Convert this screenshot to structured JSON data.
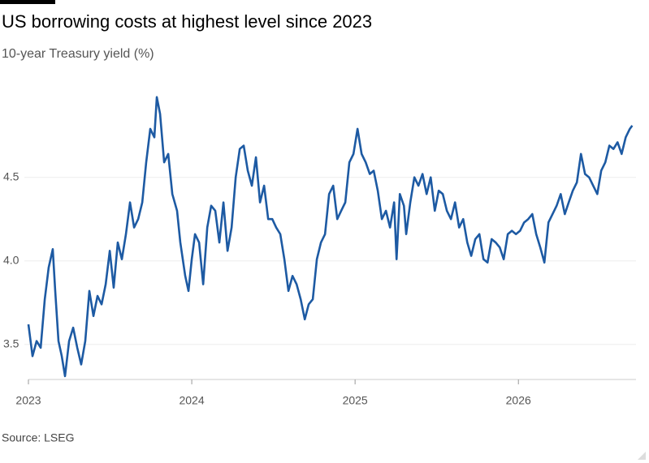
{
  "chart_data": {
    "type": "line",
    "title": "US borrowing costs at highest level since 2023",
    "subtitle": "10-year Treasury yield (%)",
    "source": "Source: LSEG",
    "color": "#1d5aa3",
    "grid": true,
    "xlim": [
      2023,
      2026.72
    ],
    "xticks": [
      2023,
      2024,
      2025,
      2026
    ],
    "ylim": [
      3.29,
      5.0
    ],
    "yticks": [
      3.5,
      {
        "value": 4,
        "label": "4.0"
      },
      4.5
    ],
    "x": [
      2023.0,
      2023.025,
      2023.05,
      2023.075,
      2023.1,
      2023.124,
      2023.149,
      2023.164,
      2023.184,
      2023.204,
      2023.224,
      2023.249,
      2023.274,
      2023.299,
      2023.323,
      2023.348,
      2023.373,
      2023.398,
      2023.423,
      2023.448,
      2023.473,
      2023.498,
      2023.522,
      2023.547,
      2023.572,
      2023.597,
      2023.622,
      2023.647,
      2023.672,
      2023.697,
      2023.721,
      2023.746,
      2023.771,
      2023.786,
      2023.806,
      2023.831,
      2023.856,
      2023.881,
      2023.91,
      2023.93,
      2023.96,
      2023.98,
      2024.0,
      2024.02,
      2024.045,
      2024.07,
      2024.095,
      2024.119,
      2024.144,
      2024.169,
      2024.194,
      2024.219,
      2024.244,
      2024.269,
      2024.294,
      2024.318,
      2024.343,
      2024.368,
      2024.393,
      2024.418,
      2024.443,
      2024.468,
      2024.493,
      2024.517,
      2024.542,
      2024.567,
      2024.592,
      2024.617,
      2024.642,
      2024.667,
      2024.692,
      2024.716,
      2024.741,
      2024.766,
      2024.791,
      2024.816,
      2024.841,
      2024.866,
      2024.891,
      2024.915,
      2024.94,
      2024.965,
      2024.99,
      2025.015,
      2025.04,
      2025.065,
      2025.09,
      2025.114,
      2025.139,
      2025.164,
      2025.189,
      2025.214,
      2025.239,
      2025.254,
      2025.274,
      2025.299,
      2025.313,
      2025.338,
      2025.363,
      2025.388,
      2025.413,
      2025.438,
      2025.463,
      2025.488,
      2025.512,
      2025.537,
      2025.562,
      2025.587,
      2025.612,
      2025.637,
      2025.662,
      2025.687,
      2025.711,
      2025.736,
      2025.761,
      2025.786,
      2025.811,
      2025.836,
      2025.861,
      2025.886,
      2025.91,
      2025.935,
      2025.96,
      2025.985,
      2026.01,
      2026.035,
      2026.06,
      2026.085,
      2026.109,
      2026.134,
      2026.159,
      2026.184,
      2026.209,
      2026.234,
      2026.259,
      2026.284,
      2026.308,
      2026.333,
      2026.358,
      2026.383,
      2026.408,
      2026.433,
      2026.458,
      2026.483,
      2026.507,
      2026.532,
      2026.557,
      2026.582,
      2026.607,
      2026.632,
      2026.657,
      2026.682,
      2026.697
    ],
    "values": [
      3.62,
      3.43,
      3.52,
      3.48,
      3.77,
      3.96,
      4.07,
      3.82,
      3.52,
      3.43,
      3.31,
      3.52,
      3.6,
      3.48,
      3.38,
      3.52,
      3.82,
      3.67,
      3.79,
      3.74,
      3.86,
      4.06,
      3.84,
      4.11,
      4.01,
      4.16,
      4.35,
      4.2,
      4.25,
      4.35,
      4.59,
      4.79,
      4.74,
      4.98,
      4.88,
      4.59,
      4.64,
      4.4,
      4.3,
      4.11,
      3.91,
      3.82,
      4.01,
      4.16,
      4.11,
      3.86,
      4.2,
      4.33,
      4.3,
      4.11,
      4.35,
      4.06,
      4.2,
      4.5,
      4.67,
      4.69,
      4.54,
      4.45,
      4.62,
      4.35,
      4.45,
      4.25,
      4.25,
      4.2,
      4.16,
      4.01,
      3.82,
      3.91,
      3.86,
      3.77,
      3.65,
      3.74,
      3.77,
      4.01,
      4.11,
      4.16,
      4.4,
      4.45,
      4.25,
      4.3,
      4.35,
      4.59,
      4.64,
      4.79,
      4.64,
      4.59,
      4.52,
      4.54,
      4.42,
      4.25,
      4.3,
      4.2,
      4.35,
      4.01,
      4.4,
      4.33,
      4.16,
      4.35,
      4.5,
      4.45,
      4.52,
      4.4,
      4.5,
      4.3,
      4.42,
      4.4,
      4.3,
      4.25,
      4.35,
      4.2,
      4.25,
      4.11,
      4.03,
      4.13,
      4.16,
      4.01,
      3.99,
      4.13,
      4.11,
      4.08,
      4.01,
      4.16,
      4.18,
      4.16,
      4.18,
      4.23,
      4.25,
      4.28,
      4.16,
      4.08,
      3.99,
      4.23,
      4.28,
      4.33,
      4.4,
      4.28,
      4.35,
      4.42,
      4.47,
      4.64,
      4.52,
      4.5,
      4.45,
      4.4,
      4.54,
      4.59,
      4.69,
      4.67,
      4.71,
      4.64,
      4.74,
      4.79,
      4.81
    ]
  }
}
